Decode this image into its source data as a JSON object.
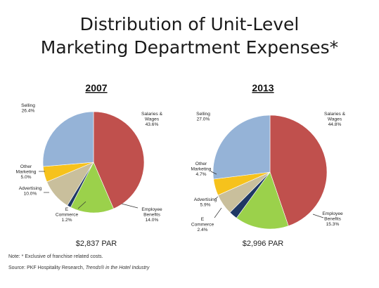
{
  "title_line1": "Distribution of Unit-Level",
  "title_line2": "Marketing Department Expenses*",
  "colors": {
    "salaries": "#c0504d",
    "benefits": "#9bd14b",
    "ecommerce": "#1f3864",
    "advertising": "#c9bf9c",
    "other": "#f6c21c",
    "selling": "#95b3d7"
  },
  "chart_data": [
    {
      "type": "pie",
      "title": "2007",
      "footer": "$2,837 PAR",
      "slices": [
        {
          "key": "salaries",
          "label_lines": [
            "Salaries &",
            "Wages"
          ],
          "value": 43.6,
          "value_text": "43.6%"
        },
        {
          "key": "benefits",
          "label_lines": [
            "Employee",
            "Benefits"
          ],
          "value": 14.0,
          "value_text": "14.0%"
        },
        {
          "key": "ecommerce",
          "label_lines": [
            "E",
            "Commerce"
          ],
          "value": 1.2,
          "value_text": "1.2%"
        },
        {
          "key": "advertising",
          "label_lines": [
            "Advertising"
          ],
          "value": 10.0,
          "value_text": "10.0%"
        },
        {
          "key": "other",
          "label_lines": [
            "Other",
            "Marketing"
          ],
          "value": 5.0,
          "value_text": "5.0%"
        },
        {
          "key": "selling",
          "label_lines": [
            "Selling"
          ],
          "value": 26.4,
          "value_text": "26.4%"
        }
      ]
    },
    {
      "type": "pie",
      "title": "2013",
      "footer": "$2,996 PAR",
      "slices": [
        {
          "key": "salaries",
          "label_lines": [
            "Salaries &",
            "Wages"
          ],
          "value": 44.8,
          "value_text": "44.8%"
        },
        {
          "key": "benefits",
          "label_lines": [
            "Employee",
            "Benefits"
          ],
          "value": 15.3,
          "value_text": "15.3%"
        },
        {
          "key": "ecommerce",
          "label_lines": [
            "E",
            "Commerce"
          ],
          "value": 2.4,
          "value_text": "2.4%"
        },
        {
          "key": "advertising",
          "label_lines": [
            "Advertising"
          ],
          "value": 5.9,
          "value_text": "5.9%"
        },
        {
          "key": "other",
          "label_lines": [
            "Other",
            "Marketing"
          ],
          "value": 4.7,
          "value_text": "4.7%"
        },
        {
          "key": "selling",
          "label_lines": [
            "Selling"
          ],
          "value": 27.0,
          "value_text": "27.0%"
        }
      ]
    }
  ],
  "note_prefix": "Note: * Exclusive of franchise related costs.",
  "source_prefix": "Source: PKF Hospitality Research, ",
  "source_italic": "Trends® in the Hotel Industry"
}
